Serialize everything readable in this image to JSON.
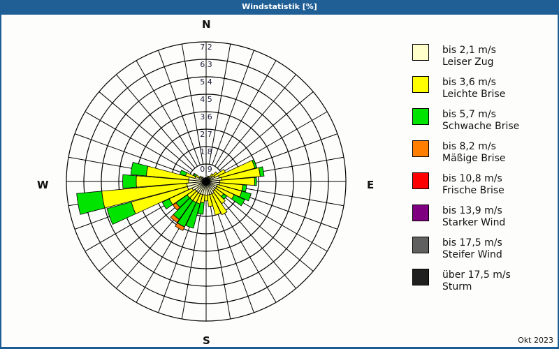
{
  "title": "Windstatistik [%]",
  "date_label": "Okt 2023",
  "compass": {
    "n": "N",
    "e": "E",
    "s": "S",
    "w": "W"
  },
  "legend": [
    {
      "range": "bis 2,1 m/s",
      "name": "Leiser Zug",
      "color": "#ffffcc"
    },
    {
      "range": "bis 3,6 m/s",
      "name": "Leichte Brise",
      "color": "#ffff00"
    },
    {
      "range": "bis 5,7 m/s",
      "name": "Schwache Brise",
      "color": "#00e400"
    },
    {
      "range": "bis 8,2 m/s",
      "name": "Mäßige Brise",
      "color": "#ff7e00"
    },
    {
      "range": "bis 10,8 m/s",
      "name": "Frische Brise",
      "color": "#ff0000"
    },
    {
      "range": "bis 13,9 m/s",
      "name": "Starker Wind",
      "color": "#7e0080"
    },
    {
      "range": "bis 17,5 m/s",
      "name": "Steifer Wind",
      "color": "#606060"
    },
    {
      "range": "über 17,5 m/s",
      "name": "Sturm",
      "color": "#202020"
    }
  ],
  "chart_data": {
    "type": "polar-bar",
    "title": "Windstatistik [%]",
    "subtitle": "Okt 2023",
    "radial_ticks": [
      "0,9",
      "1,8",
      "2,7",
      "3,6",
      "4,5",
      "5,4",
      "6,3",
      "7,2"
    ],
    "radial_max": 7.2,
    "direction_labels": [
      "N",
      "E",
      "S",
      "W"
    ],
    "sector_width_deg": 10,
    "series_names": [
      "bis 2,1 m/s",
      "bis 3,6 m/s",
      "bis 5,7 m/s",
      "bis 8,2 m/s"
    ],
    "sectors": [
      {
        "dir": 0,
        "values": [
          0.2,
          0.0,
          0.0,
          0.0
        ]
      },
      {
        "dir": 10,
        "values": [
          0.2,
          0.0,
          0.0,
          0.0
        ]
      },
      {
        "dir": 20,
        "values": [
          0.2,
          0.1,
          0.0,
          0.0
        ]
      },
      {
        "dir": 30,
        "values": [
          0.2,
          0.1,
          0.0,
          0.0
        ]
      },
      {
        "dir": 40,
        "values": [
          0.3,
          0.2,
          0.0,
          0.0
        ]
      },
      {
        "dir": 50,
        "values": [
          0.4,
          0.3,
          0.0,
          0.0
        ]
      },
      {
        "dir": 60,
        "values": [
          0.5,
          0.6,
          0.0,
          0.0
        ]
      },
      {
        "dir": 70,
        "values": [
          0.7,
          1.9,
          0.1,
          0.0
        ]
      },
      {
        "dir": 80,
        "values": [
          0.8,
          2.0,
          0.2,
          0.0
        ]
      },
      {
        "dir": 90,
        "values": [
          0.7,
          1.8,
          0.1,
          0.0
        ]
      },
      {
        "dir": 100,
        "values": [
          0.7,
          1.2,
          0.2,
          0.0
        ]
      },
      {
        "dir": 110,
        "values": [
          0.6,
          1.3,
          0.5,
          0.0
        ]
      },
      {
        "dir": 120,
        "values": [
          0.6,
          1.0,
          0.6,
          0.0
        ]
      },
      {
        "dir": 130,
        "values": [
          0.6,
          0.5,
          0.2,
          0.0
        ]
      },
      {
        "dir": 140,
        "values": [
          0.6,
          0.8,
          0.0,
          0.0
        ]
      },
      {
        "dir": 150,
        "values": [
          0.7,
          1.2,
          0.0,
          0.0
        ]
      },
      {
        "dir": 160,
        "values": [
          0.7,
          1.1,
          0.0,
          0.0
        ]
      },
      {
        "dir": 170,
        "values": [
          0.7,
          0.6,
          0.0,
          0.0
        ]
      },
      {
        "dir": 180,
        "values": [
          0.7,
          0.3,
          0.0,
          0.0
        ]
      },
      {
        "dir": 190,
        "values": [
          0.7,
          0.4,
          0.6,
          0.0
        ]
      },
      {
        "dir": 200,
        "values": [
          0.7,
          0.5,
          1.3,
          0.0
        ]
      },
      {
        "dir": 210,
        "values": [
          0.7,
          0.5,
          1.4,
          0.2
        ]
      },
      {
        "dir": 220,
        "values": [
          0.7,
          0.5,
          1.2,
          0.2
        ]
      },
      {
        "dir": 230,
        "values": [
          0.7,
          0.5,
          0.7,
          0.2
        ]
      },
      {
        "dir": 240,
        "values": [
          0.8,
          1.3,
          0.4,
          0.0
        ]
      },
      {
        "dir": 250,
        "values": [
          1.0,
          3.0,
          1.3,
          0.0
        ]
      },
      {
        "dir": 260,
        "values": [
          1.0,
          4.4,
          1.3,
          0.0
        ]
      },
      {
        "dir": 270,
        "values": [
          0.9,
          2.7,
          0.7,
          0.0
        ]
      },
      {
        "dir": 280,
        "values": [
          0.9,
          2.2,
          0.8,
          0.0
        ]
      },
      {
        "dir": 290,
        "values": [
          0.6,
          0.5,
          0.3,
          0.0
        ]
      },
      {
        "dir": 300,
        "values": [
          0.4,
          0.2,
          0.1,
          0.05
        ]
      },
      {
        "dir": 310,
        "values": [
          0.3,
          0.1,
          0.0,
          0.0
        ]
      },
      {
        "dir": 320,
        "values": [
          0.3,
          0.0,
          0.0,
          0.0
        ]
      },
      {
        "dir": 330,
        "values": [
          0.2,
          0.0,
          0.0,
          0.0
        ]
      },
      {
        "dir": 340,
        "values": [
          0.2,
          0.0,
          0.0,
          0.0
        ]
      },
      {
        "dir": 350,
        "values": [
          0.2,
          0.0,
          0.0,
          0.0
        ]
      }
    ]
  }
}
